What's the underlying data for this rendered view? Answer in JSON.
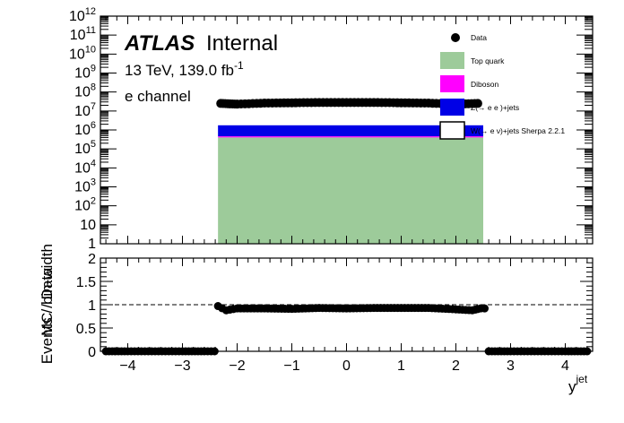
{
  "chart_data": [
    {
      "type": "area",
      "panel": "main",
      "ylabel": "Events / bin-width",
      "yscale": "log",
      "xlim": [
        -4.5,
        4.5
      ],
      "ylim": [
        1,
        1000000000000.0
      ],
      "ytick_exponents": [
        0,
        1,
        2,
        3,
        4,
        5,
        6,
        7,
        8,
        9,
        10,
        11,
        12
      ],
      "xticks": [
        -4,
        -3,
        -2,
        -1,
        0,
        1,
        2,
        3,
        4
      ],
      "xtick_labels": [
        "−4",
        "−3",
        "−2",
        "−1",
        "0",
        "1",
        "2",
        "3",
        "4"
      ],
      "stack_range": [
        -2.35,
        2.5
      ],
      "series": [
        {
          "name": "Top quark",
          "color": "#9dcb9a",
          "value": 400000
        },
        {
          "name": "Diboson",
          "color": "#ff00ff",
          "value": 60000
        },
        {
          "name": "Z(→ e e )+jets",
          "color": "#0000e6",
          "value": 1300000
        },
        {
          "name": "W(→ e ν)+jets Sherpa 2.2.1",
          "color": "#ffffff",
          "value": 40000
        }
      ],
      "data_points": {
        "name": "Data",
        "x": [
          -2.3,
          -2.0,
          -1.5,
          -1.0,
          -0.5,
          0.0,
          0.5,
          1.0,
          1.5,
          2.0,
          2.4
        ],
        "y": [
          25000000,
          23000000,
          26000000,
          27000000,
          28000000,
          28000000,
          28000000,
          27000000,
          26000000,
          23000000,
          25000000
        ]
      }
    },
    {
      "type": "scatter",
      "panel": "ratio",
      "ylabel": "MC / Data",
      "xlabel_main": "y",
      "xlabel_sup": "jet",
      "xlim": [
        -4.5,
        4.5
      ],
      "ylim": [
        0,
        2
      ],
      "yticks": [
        0,
        0.5,
        1,
        1.5,
        2
      ],
      "ytick_labels": [
        "0",
        "0.5",
        "1",
        "1.5",
        "2"
      ],
      "reference_line": 1,
      "x": [
        -4.4,
        -4.0,
        -3.5,
        -3.0,
        -2.6,
        -2.35,
        -2.2,
        -2.0,
        -1.5,
        -1.0,
        -0.5,
        0.0,
        0.5,
        1.0,
        1.5,
        2.0,
        2.3,
        2.45,
        2.6,
        3.0,
        3.5,
        4.0,
        4.4
      ],
      "y": [
        0,
        0,
        0,
        0,
        0,
        0.97,
        0.88,
        0.92,
        0.92,
        0.91,
        0.93,
        0.92,
        0.93,
        0.93,
        0.93,
        0.9,
        0.88,
        0.92,
        0,
        0,
        0,
        0,
        0
      ]
    }
  ],
  "labels": {
    "atlas_bold": "ATLAS",
    "atlas_suffix": "Internal",
    "energy_lumi": "13 TeV, 139.0 fb",
    "lumi_exp": "-1",
    "channel": "e channel",
    "legend_data": "Data"
  }
}
